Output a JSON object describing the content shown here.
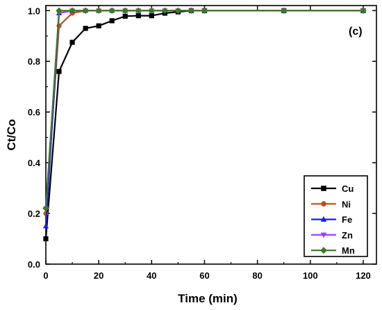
{
  "chart_data": {
    "type": "line",
    "panel_label": "(c)",
    "xlabel": "Time (min)",
    "ylabel": "Ct/Co",
    "xlim": [
      0,
      125
    ],
    "ylim": [
      0,
      1.02
    ],
    "xticks": [
      0,
      20,
      40,
      60,
      80,
      100,
      120
    ],
    "yticks": [
      0.0,
      0.2,
      0.4,
      0.6,
      0.8,
      1.0
    ],
    "x_tick_labels": [
      "0",
      "20",
      "40",
      "60",
      "80",
      "100",
      "120"
    ],
    "y_tick_labels": [
      "0.0",
      "0.2",
      "0.4",
      "0.6",
      "0.8",
      "1.0"
    ],
    "legend_position": "bottom-right",
    "grid": false,
    "series": [
      {
        "name": "Cu",
        "color": "#000000",
        "marker": "square",
        "x": [
          0,
          5,
          10,
          15,
          20,
          25,
          30,
          35,
          40,
          45,
          50,
          55,
          60,
          90,
          120
        ],
        "y": [
          0.1,
          0.76,
          0.875,
          0.93,
          0.94,
          0.96,
          0.978,
          0.98,
          0.98,
          0.99,
          0.995,
          1.0,
          1.0,
          1.0,
          1.0
        ]
      },
      {
        "name": "Ni",
        "color": "#b5541a",
        "marker": "circle",
        "x": [
          0,
          5,
          10,
          15,
          20,
          25,
          30,
          35,
          40,
          45,
          50,
          55,
          60,
          90,
          120
        ],
        "y": [
          0.2,
          0.94,
          0.99,
          1.0,
          1.0,
          1.0,
          1.0,
          1.0,
          1.0,
          1.0,
          1.0,
          1.0,
          1.0,
          1.0,
          1.0
        ]
      },
      {
        "name": "Fe",
        "color": "#1a1aff",
        "marker": "triangle-up",
        "x": [
          0,
          5,
          10,
          15,
          20,
          25,
          30,
          35,
          40,
          45,
          50,
          55,
          60,
          90,
          120
        ],
        "y": [
          0.15,
          0.99,
          1.0,
          1.0,
          1.0,
          1.0,
          1.0,
          1.0,
          1.0,
          1.0,
          1.0,
          1.0,
          1.0,
          1.0,
          1.0
        ]
      },
      {
        "name": "Zn",
        "color": "#a040ff",
        "marker": "triangle-down",
        "x": [
          0,
          5,
          10,
          15,
          20,
          25,
          30,
          35,
          40,
          45,
          50,
          55,
          60,
          90,
          120
        ],
        "y": [
          0.22,
          0.99,
          1.0,
          1.0,
          1.0,
          1.0,
          1.0,
          1.0,
          1.0,
          1.0,
          1.0,
          1.0,
          1.0,
          1.0,
          1.0
        ]
      },
      {
        "name": "Mn",
        "color": "#3e7a1e",
        "marker": "diamond",
        "x": [
          0,
          5,
          10,
          15,
          20,
          25,
          30,
          35,
          40,
          45,
          50,
          55,
          60,
          90,
          120
        ],
        "y": [
          0.22,
          1.0,
          1.0,
          1.0,
          1.0,
          1.0,
          1.0,
          1.0,
          1.0,
          1.0,
          1.0,
          1.0,
          1.0,
          1.0,
          1.0
        ]
      }
    ]
  }
}
